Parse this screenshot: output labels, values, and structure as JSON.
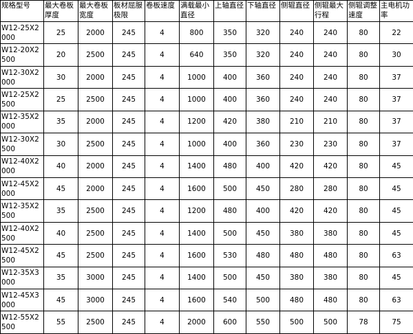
{
  "table": {
    "header": [
      "规格型号",
      "最大卷板厚度",
      "最大卷板宽度",
      "板材屈服极限",
      "卷板速度",
      "满载最小直径",
      "上轴直径",
      "下轴直径",
      "侧辊直径",
      "侧辊最大行程",
      "侧辊调整速度",
      "主电机功率"
    ],
    "rows": [
      [
        "W12-25X2000",
        25,
        2000,
        245,
        4,
        800,
        350,
        320,
        240,
        240,
        80,
        22
      ],
      [
        "W12-20X2500",
        20,
        2500,
        245,
        4,
        640,
        350,
        320,
        240,
        240,
        80,
        30
      ],
      [
        "W12-30X2000",
        30,
        2000,
        245,
        4,
        1000,
        400,
        360,
        240,
        240,
        80,
        37
      ],
      [
        "W12-25X2500",
        25,
        2500,
        245,
        4,
        1000,
        400,
        360,
        240,
        240,
        80,
        37
      ],
      [
        "W12-35X2000",
        35,
        2000,
        245,
        4,
        1200,
        420,
        380,
        210,
        210,
        80,
        37
      ],
      [
        "W12-30X2500",
        30,
        2500,
        245,
        4,
        1000,
        400,
        360,
        230,
        230,
        80,
        37
      ],
      [
        "W12-40X2000",
        40,
        2000,
        245,
        4,
        1400,
        480,
        400,
        420,
        420,
        80,
        45
      ],
      [
        "W12-45X2000",
        45,
        2000,
        245,
        4,
        1600,
        500,
        450,
        280,
        280,
        80,
        45
      ],
      [
        "W12-35X2500",
        35,
        2500,
        245,
        4,
        1200,
        480,
        400,
        420,
        420,
        80,
        45
      ],
      [
        "W12-40X2500",
        40,
        2500,
        245,
        4,
        1400,
        500,
        450,
        380,
        380,
        80,
        45
      ],
      [
        "W12-45X2500",
        45,
        2500,
        245,
        4,
        1600,
        530,
        480,
        480,
        480,
        80,
        63
      ],
      [
        "W12-35X3000",
        35,
        3000,
        245,
        4,
        1400,
        500,
        450,
        380,
        380,
        80,
        45
      ],
      [
        "W12-45X3000",
        45,
        3000,
        245,
        4,
        1600,
        540,
        500,
        480,
        480,
        80,
        63
      ],
      [
        "W12-55X2500",
        55,
        2500,
        245,
        4,
        2000,
        600,
        550,
        500,
        500,
        78,
        75
      ]
    ]
  }
}
